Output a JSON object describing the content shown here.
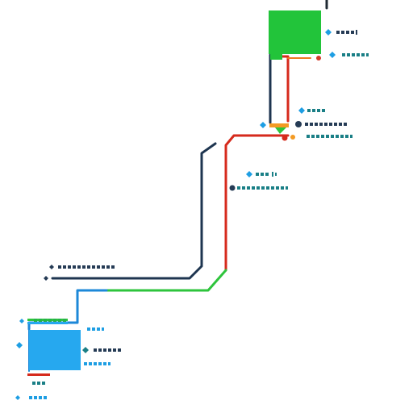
{
  "colors": {
    "background": "#ffffff",
    "box_green": "#22c43a",
    "box_blue": "#26a8ef",
    "wire_navy": "#1e3550",
    "wire_red": "#d62a1c",
    "wire_green": "#2ec43c",
    "wire_blue": "#1d88d8",
    "wire_dark": "#1f2a33",
    "label_cyan": "#1e9ee3",
    "label_teal": "#1a7f86",
    "label_navy": "#253b55",
    "label_red": "#d43a2a",
    "label_green": "#25b24a"
  },
  "labels": [],
  "icons": {
    "pin_shape": "diamond",
    "node_shape": "dot"
  }
}
